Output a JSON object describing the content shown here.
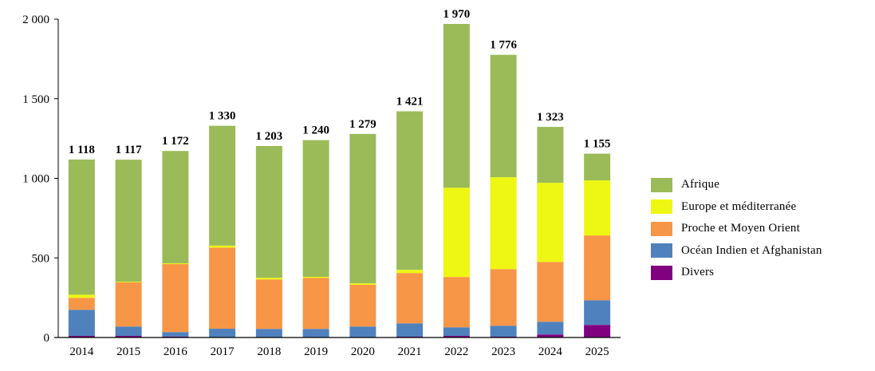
{
  "chart_data": {
    "type": "bar",
    "stacked": true,
    "title": "",
    "xlabel": "",
    "ylabel": "",
    "ylim": [
      0,
      2000
    ],
    "yticks": [
      0,
      500,
      1000,
      1500,
      2000
    ],
    "ytick_labels": [
      "0",
      "500",
      "1 000",
      "1 500",
      "2 000"
    ],
    "grid": false,
    "legend_position": "right",
    "categories": [
      "2014",
      "2015",
      "2016",
      "2017",
      "2018",
      "2019",
      "2020",
      "2021",
      "2022",
      "2023",
      "2024",
      "2025"
    ],
    "series": [
      {
        "name": "Divers",
        "color": "#800080",
        "values": [
          10,
          10,
          6,
          0,
          0,
          0,
          0,
          5,
          10,
          5,
          19,
          79
        ]
      },
      {
        "name": "Océan Indien et Afghanistan",
        "color": "#4f81bd",
        "values": [
          164,
          59,
          28,
          55,
          54,
          54,
          69,
          84,
          54,
          69,
          80,
          155
        ]
      },
      {
        "name": "Proche et Moyen Orient",
        "color": "#f79646",
        "values": [
          75,
          277,
          427,
          510,
          311,
          321,
          262,
          316,
          316,
          356,
          376,
          407
        ]
      },
      {
        "name": "Europe et méditerranée",
        "color": "#eef711",
        "values": [
          20,
          4,
          5,
          12,
          10,
          6,
          9,
          20,
          561,
          577,
          497,
          346
        ]
      },
      {
        "name": "Afrique",
        "color": "#9bbb59",
        "values": [
          849,
          767,
          706,
          753,
          828,
          859,
          939,
          996,
          1029,
          769,
          351,
          168
        ]
      }
    ],
    "totals": [
      1118,
      1117,
      1172,
      1330,
      1203,
      1240,
      1279,
      1421,
      1970,
      1776,
      1323,
      1155
    ],
    "total_labels": [
      "1 118",
      "1 117",
      "1 172",
      "1 330",
      "1 203",
      "1 240",
      "1 279",
      "1 421",
      "1 970",
      "1 776",
      "1 323",
      "1 155"
    ],
    "legend_order": [
      "Afrique",
      "Europe et méditerranée",
      "Proche et Moyen Orient",
      "Océan Indien et Afghanistan",
      "Divers"
    ]
  },
  "legend": {
    "items": [
      {
        "label": "Afrique",
        "color": "#9bbb59"
      },
      {
        "label": "Europe et méditerranée",
        "color": "#eef711"
      },
      {
        "label": "Proche et Moyen Orient",
        "color": "#f79646"
      },
      {
        "label": "Océan Indien et Afghanistan",
        "color": "#4f81bd"
      },
      {
        "label": "Divers",
        "color": "#800080"
      }
    ]
  }
}
